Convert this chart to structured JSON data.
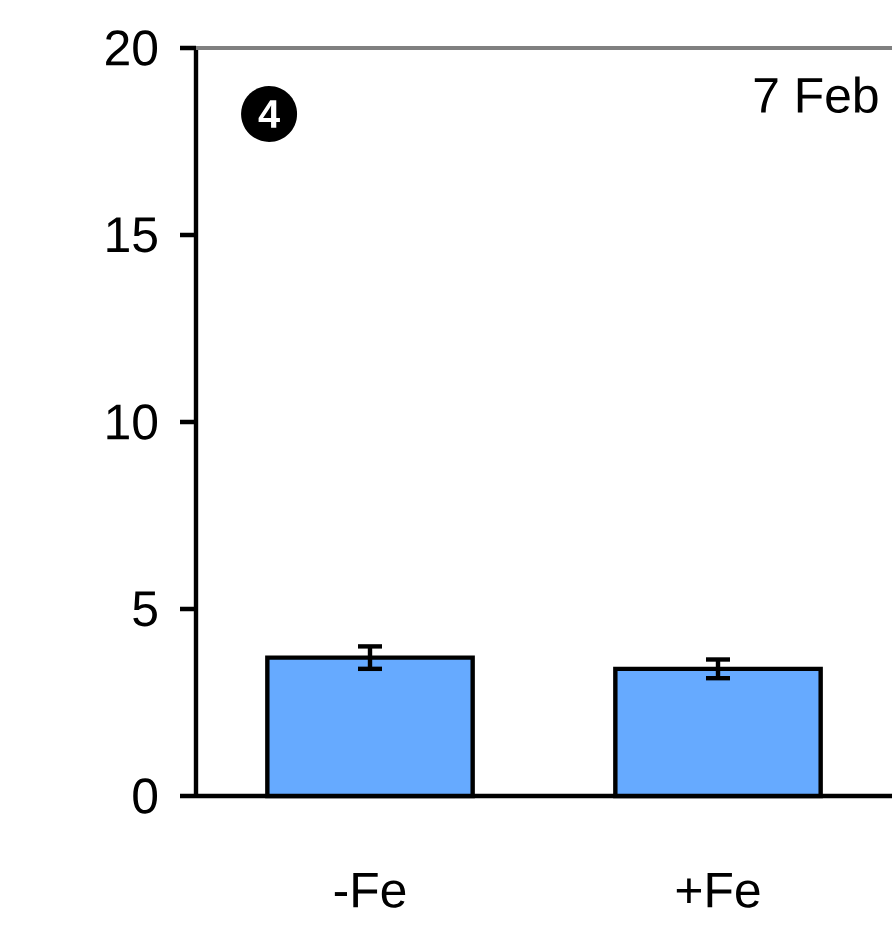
{
  "chart_data": {
    "type": "bar",
    "title": "7 Feb",
    "annotations": [
      "4"
    ],
    "categories": [
      "-Fe",
      "+Fe"
    ],
    "values": [
      3.7,
      3.4
    ],
    "errors": [
      0.3,
      0.25
    ],
    "color": "#66aaff",
    "ylim": [
      0,
      20
    ],
    "yticks": [
      0,
      5,
      10,
      15,
      20
    ]
  }
}
